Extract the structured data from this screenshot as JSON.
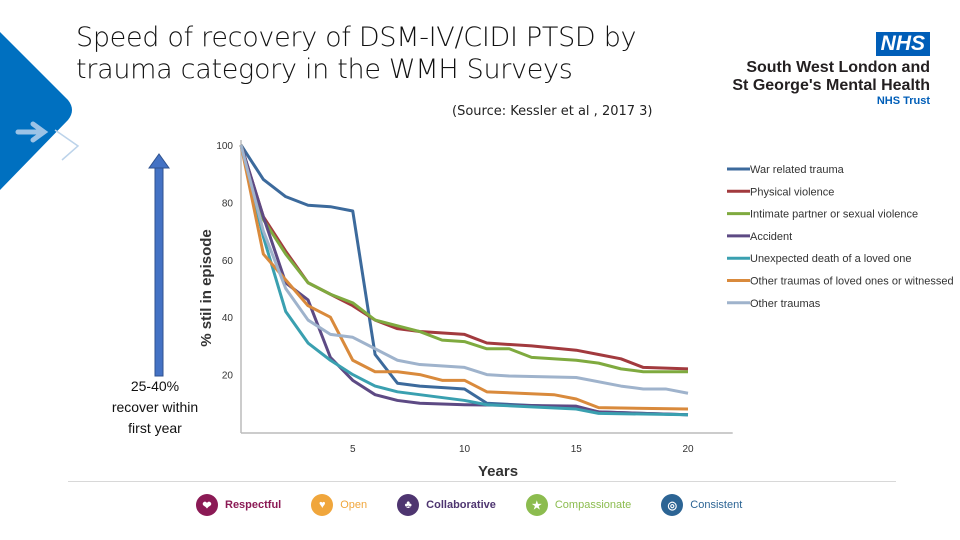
{
  "slide": {
    "title": "Speed of recovery of DSM-IV/CIDI PTSD by trauma category in the WMH Surveys",
    "title_line1": "Speed of recovery of DSM-IV/CIDI PTSD by",
    "title_line2": "trauma category in the WMH Surveys",
    "source": "(Source: Kessler et al , 2017 3)",
    "annotation": "25-40% recover within first year",
    "annotation_lines": [
      "25-40%",
      "recover within",
      "first year"
    ],
    "arrow_icon": "arrow-up-icon",
    "accent_color": "#0070c0"
  },
  "logo": {
    "badge": "NHS",
    "line1": "South West London and",
    "line2": "St George's Mental Health",
    "line3": "NHS Trust"
  },
  "values": [
    {
      "label": "Respectful",
      "color": "#8b1a55",
      "icon": "handshake-icon"
    },
    {
      "label": "Open",
      "color": "#f0a63c",
      "icon": "heart-icon"
    },
    {
      "label": "Collaborative",
      "color": "#4e3570",
      "icon": "people-icon"
    },
    {
      "label": "Compassionate",
      "color": "#8cbc4f",
      "icon": "group-icon"
    },
    {
      "label": "Consistent",
      "color": "#2c6494",
      "icon": "target-icon"
    }
  ],
  "chart_data": {
    "type": "line",
    "title": "",
    "xlabel": "Years",
    "ylabel": "% stil in episode",
    "xlim": [
      0,
      22
    ],
    "ylim": [
      0,
      100
    ],
    "xticks": [
      5,
      10,
      15,
      20
    ],
    "yticks": [
      20,
      40,
      60,
      80,
      100
    ],
    "grid": false,
    "legend": "right",
    "series": [
      {
        "name": "War related trauma",
        "color": "#3c6a9c",
        "points": [
          [
            0,
            100
          ],
          [
            1,
            88
          ],
          [
            2,
            82
          ],
          [
            3,
            79
          ],
          [
            4,
            78.5
          ],
          [
            5,
            77
          ],
          [
            6,
            27
          ],
          [
            6.5,
            22
          ],
          [
            7,
            17
          ],
          [
            8,
            16
          ],
          [
            10,
            15
          ],
          [
            11,
            10
          ],
          [
            15,
            8.5
          ],
          [
            16,
            7
          ],
          [
            20,
            6
          ]
        ]
      },
      {
        "name": "Physical violence",
        "color": "#a23a3e",
        "points": [
          [
            0,
            100
          ],
          [
            1,
            75
          ],
          [
            2,
            63
          ],
          [
            3,
            52
          ],
          [
            4,
            48
          ],
          [
            5,
            44
          ],
          [
            6,
            39
          ],
          [
            7,
            36
          ],
          [
            8,
            35
          ],
          [
            10,
            34
          ],
          [
            11,
            31
          ],
          [
            13,
            30
          ],
          [
            15,
            28.5
          ],
          [
            16,
            27
          ],
          [
            17,
            25.5
          ],
          [
            18,
            22.5
          ],
          [
            20,
            22
          ]
        ]
      },
      {
        "name": "Intimate partner or sexual violence",
        "color": "#7faa3f",
        "points": [
          [
            0,
            100
          ],
          [
            1,
            74
          ],
          [
            2,
            62
          ],
          [
            3,
            52
          ],
          [
            4,
            48
          ],
          [
            5,
            45
          ],
          [
            6,
            39
          ],
          [
            7,
            37
          ],
          [
            8,
            35
          ],
          [
            9,
            32
          ],
          [
            10,
            31.5
          ],
          [
            11,
            29
          ],
          [
            12,
            29
          ],
          [
            13,
            26
          ],
          [
            15,
            25
          ],
          [
            16,
            24
          ],
          [
            17,
            22
          ],
          [
            18,
            21
          ],
          [
            20,
            21
          ]
        ]
      },
      {
        "name": "Accident",
        "color": "#5d4a84",
        "points": [
          [
            0,
            100
          ],
          [
            1,
            75
          ],
          [
            2,
            52
          ],
          [
            3,
            46
          ],
          [
            4,
            26
          ],
          [
            5,
            18
          ],
          [
            6,
            13
          ],
          [
            7,
            11
          ],
          [
            8,
            10
          ],
          [
            10,
            9.5
          ],
          [
            15,
            9
          ],
          [
            16,
            7
          ],
          [
            20,
            6
          ]
        ]
      },
      {
        "name": "Unexpected death of a loved one",
        "color": "#3aa0b0",
        "points": [
          [
            0,
            100
          ],
          [
            1,
            68
          ],
          [
            2,
            42
          ],
          [
            3,
            31
          ],
          [
            4,
            25
          ],
          [
            5,
            20
          ],
          [
            6,
            16
          ],
          [
            7,
            14
          ],
          [
            8,
            13
          ],
          [
            9,
            12
          ],
          [
            10,
            11
          ],
          [
            11,
            9.5
          ],
          [
            15,
            8
          ],
          [
            16,
            6.5
          ],
          [
            20,
            6
          ]
        ]
      },
      {
        "name": "Other traumas of loved ones or witnessed",
        "color": "#d98a3c",
        "points": [
          [
            0,
            100
          ],
          [
            1,
            62
          ],
          [
            2,
            53
          ],
          [
            3,
            44
          ],
          [
            4,
            40
          ],
          [
            5,
            25
          ],
          [
            6,
            21
          ],
          [
            7,
            21
          ],
          [
            8,
            20
          ],
          [
            9,
            18
          ],
          [
            10,
            18
          ],
          [
            11,
            14
          ],
          [
            14,
            13
          ],
          [
            15,
            11.5
          ],
          [
            16,
            8.5
          ],
          [
            20,
            8
          ]
        ]
      },
      {
        "name": "Other traumas",
        "color": "#9fb3cc",
        "points": [
          [
            0,
            100
          ],
          [
            1,
            70
          ],
          [
            2,
            50
          ],
          [
            3,
            39
          ],
          [
            4,
            34
          ],
          [
            5,
            33
          ],
          [
            6,
            29
          ],
          [
            7,
            25
          ],
          [
            8,
            23.5
          ],
          [
            10,
            22.5
          ],
          [
            11,
            20
          ],
          [
            12,
            19.5
          ],
          [
            15,
            19
          ],
          [
            17,
            16
          ],
          [
            18,
            15
          ],
          [
            19,
            15
          ],
          [
            20,
            13.5
          ]
        ]
      }
    ]
  }
}
